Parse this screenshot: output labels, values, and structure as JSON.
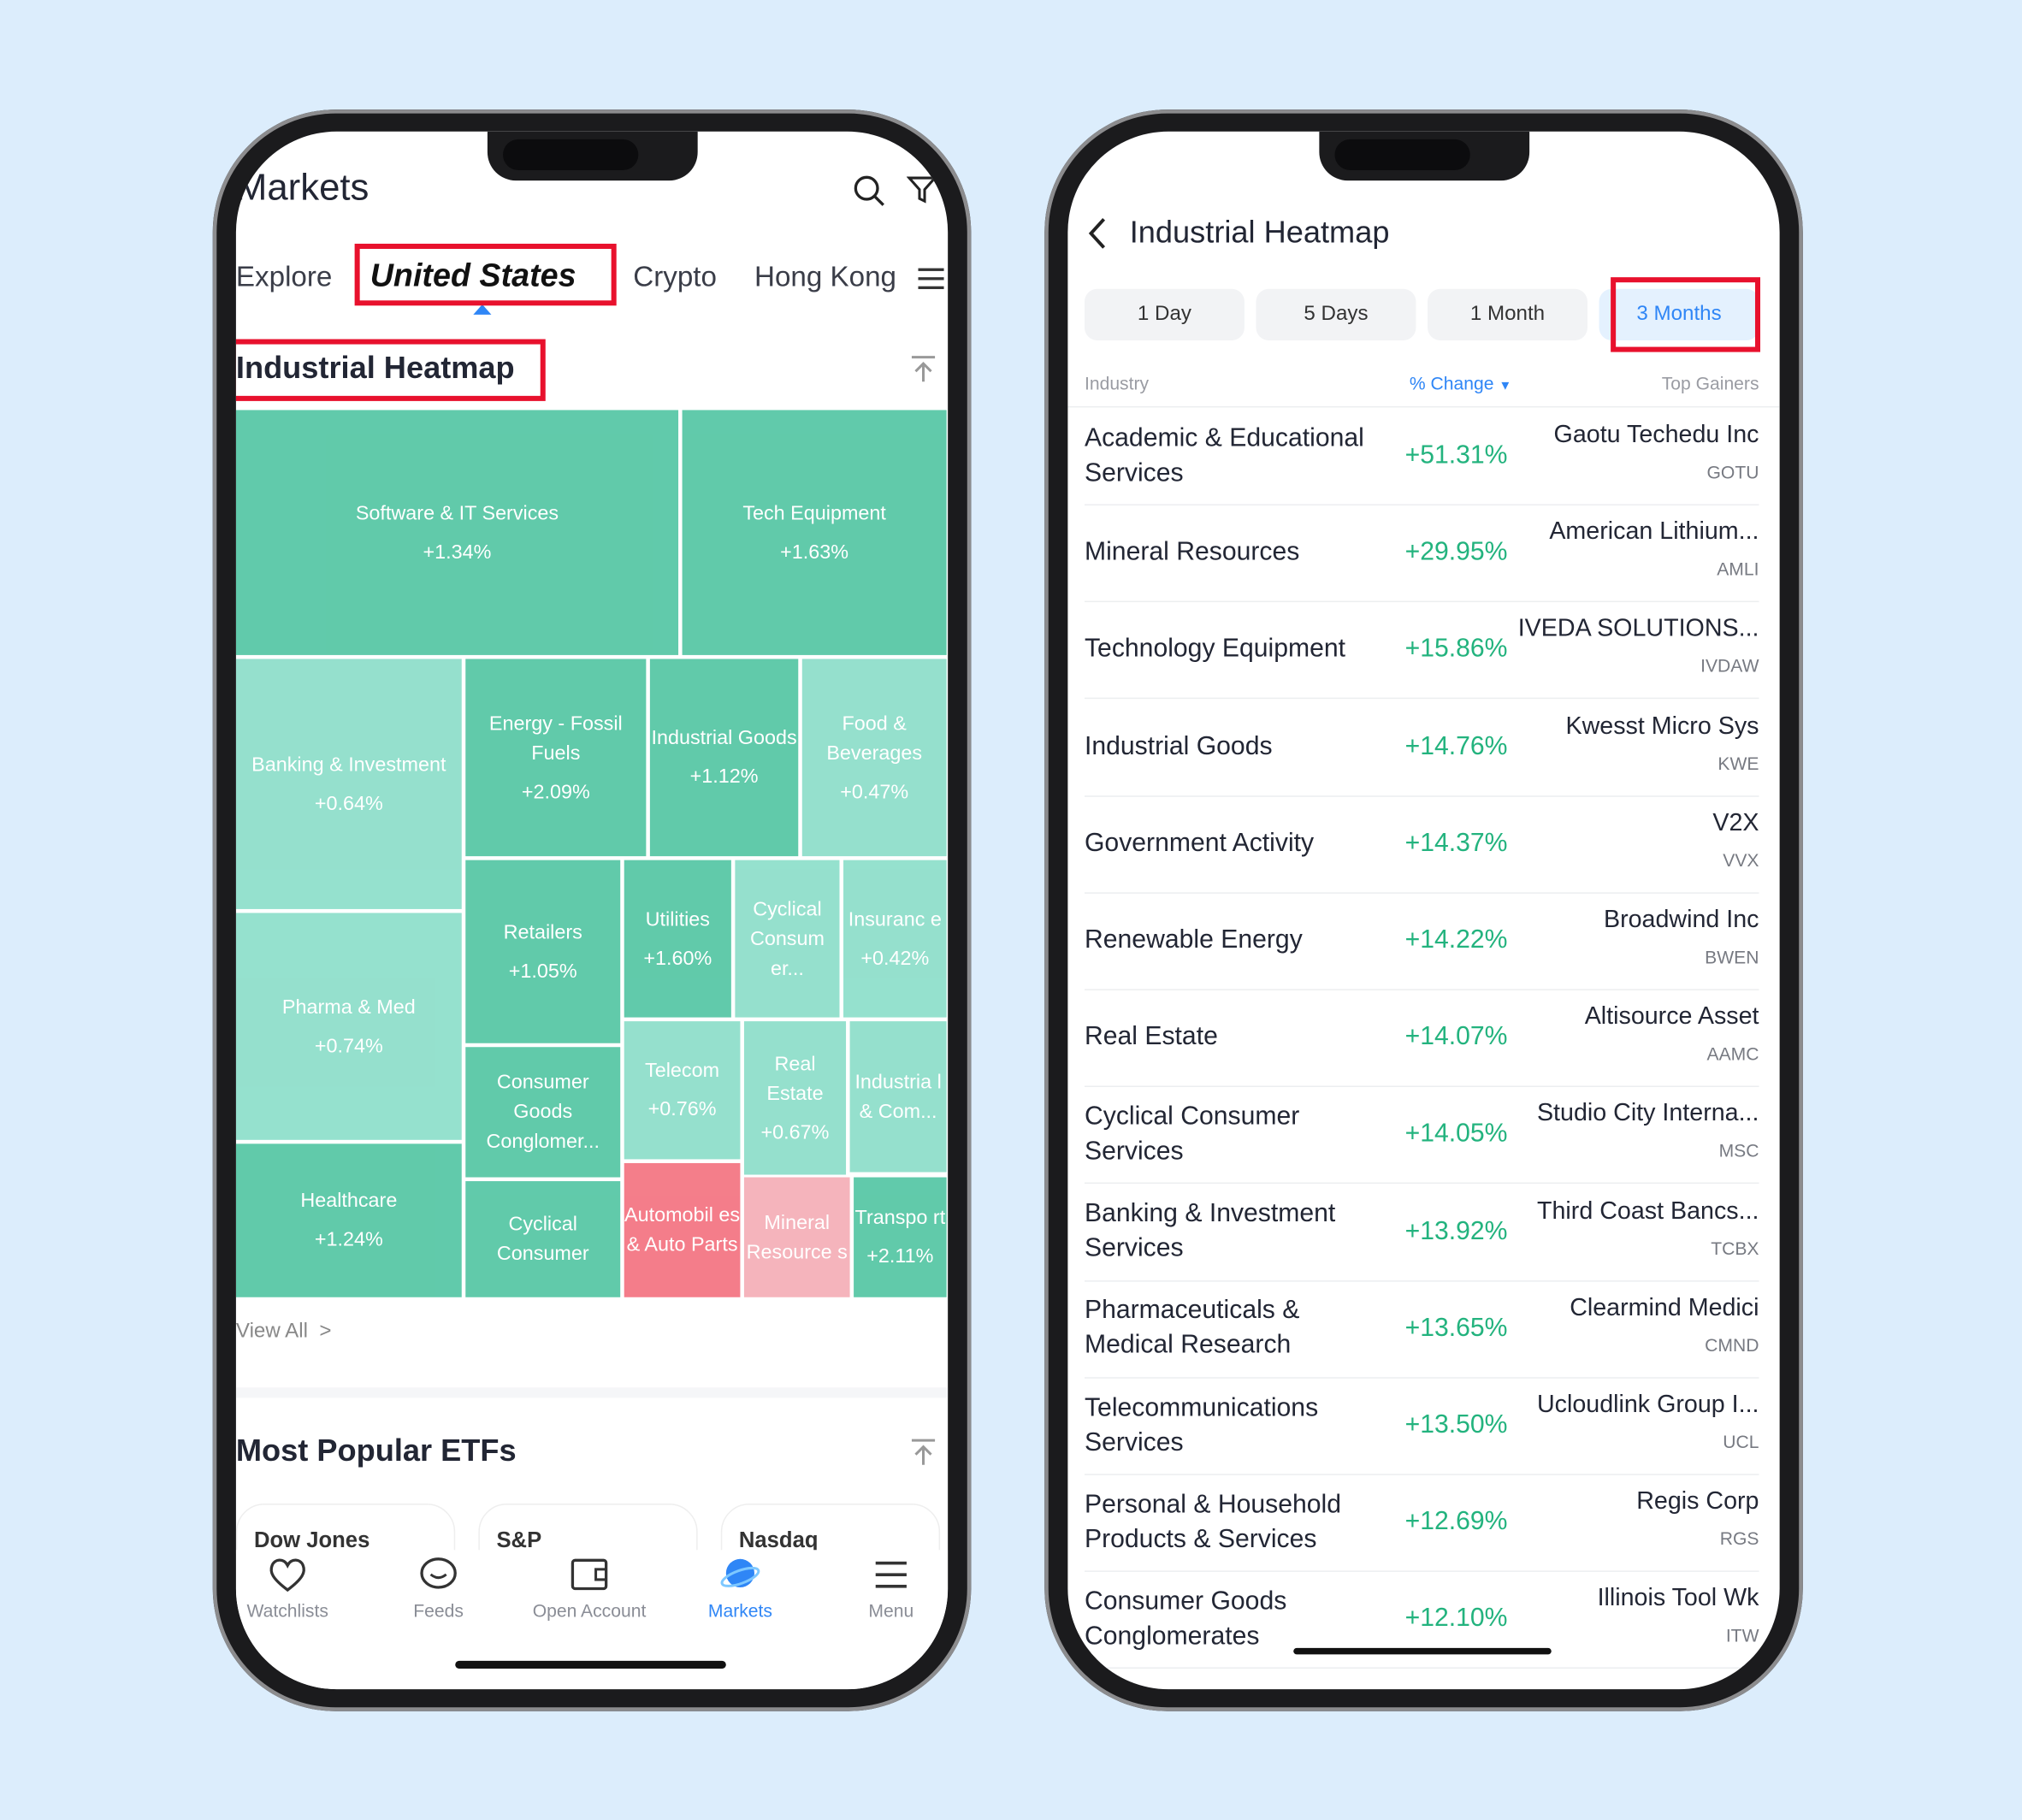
{
  "left": {
    "title": "Markets",
    "tabs": [
      "Explore",
      "United States",
      "Crypto",
      "Hong Kong"
    ],
    "active_tab": "United States",
    "heatmap_title": "Industrial Heatmap",
    "view_all": "View All",
    "etf_title": "Most Popular ETFs",
    "etfs": [
      "Dow Jones",
      "S&P",
      "Nasdaq"
    ],
    "tiles": [
      {
        "label": "Software & IT Services",
        "value": "+1.34%",
        "tone": "dark"
      },
      {
        "label": "Tech Equipment",
        "value": "+1.63%",
        "tone": "dark"
      },
      {
        "label": "Banking & Investment",
        "value": "+0.64%",
        "tone": "light"
      },
      {
        "label": "Energy - Fossil Fuels",
        "value": "+2.09%",
        "tone": "dark"
      },
      {
        "label": "Industrial Goods",
        "value": "+1.12%",
        "tone": "dark"
      },
      {
        "label": "Food & Beverages",
        "value": "+0.47%",
        "tone": "light"
      },
      {
        "label": "Pharma & Med",
        "value": "+0.74%",
        "tone": "light"
      },
      {
        "label": "Retailers",
        "value": "+1.05%",
        "tone": "dark"
      },
      {
        "label": "Utilities",
        "value": "+1.60%",
        "tone": "dark"
      },
      {
        "label": "Cyclical Consum er...",
        "value": "",
        "tone": "light"
      },
      {
        "label": "Insuranc e",
        "value": "+0.42%",
        "tone": "light"
      },
      {
        "label": "Consumer Goods Conglomer...",
        "value": "",
        "tone": "dark"
      },
      {
        "label": "Telecom",
        "value": "+0.76%",
        "tone": "light"
      },
      {
        "label": "Real Estate",
        "value": "+0.67%",
        "tone": "light"
      },
      {
        "label": "Industria l & Com...",
        "value": "",
        "tone": "light"
      },
      {
        "label": "Healthcare",
        "value": "+1.24%",
        "tone": "dark"
      },
      {
        "label": "Cyclical Consumer",
        "value": "",
        "tone": "dark"
      },
      {
        "label": "Automobil es & Auto Parts",
        "value": "",
        "tone": "red"
      },
      {
        "label": "Mineral Resource s",
        "value": "",
        "tone": "pink"
      },
      {
        "label": "Transpo rt",
        "value": "+2.11%",
        "tone": "dark"
      }
    ],
    "bottom_nav": [
      {
        "label": "Watchlists",
        "icon": "heart-icon"
      },
      {
        "label": "Feeds",
        "icon": "chat-icon"
      },
      {
        "label": "Open Account",
        "icon": "wallet-icon"
      },
      {
        "label": "Markets",
        "icon": "planet-icon",
        "active": true
      },
      {
        "label": "Menu",
        "icon": "menu-icon"
      }
    ]
  },
  "right": {
    "title": "Industrial Heatmap",
    "periods": [
      "1 Day",
      "5 Days",
      "1 Month",
      "3 Months"
    ],
    "active_period": "3 Months",
    "columns": {
      "industry": "Industry",
      "change": "% Change",
      "gainers": "Top Gainers"
    },
    "rows": [
      {
        "industry": "Academic & Educational Services",
        "change": "+51.31%",
        "gainer": "Gaotu Techedu Inc",
        "ticker": "GOTU"
      },
      {
        "industry": "Mineral Resources",
        "change": "+29.95%",
        "gainer": "American Lithium...",
        "ticker": "AMLI"
      },
      {
        "industry": "Technology Equipment",
        "change": "+15.86%",
        "gainer": "IVEDA SOLUTIONS...",
        "ticker": "IVDAW"
      },
      {
        "industry": "Industrial Goods",
        "change": "+14.76%",
        "gainer": "Kwesst Micro Sys",
        "ticker": "KWE"
      },
      {
        "industry": "Government Activity",
        "change": "+14.37%",
        "gainer": "V2X",
        "ticker": "VVX"
      },
      {
        "industry": "Renewable Energy",
        "change": "+14.22%",
        "gainer": "Broadwind Inc",
        "ticker": "BWEN"
      },
      {
        "industry": "Real Estate",
        "change": "+14.07%",
        "gainer": "Altisource Asset",
        "ticker": "AAMC"
      },
      {
        "industry": "Cyclical Consumer Services",
        "change": "+14.05%",
        "gainer": "Studio City Interna...",
        "ticker": "MSC"
      },
      {
        "industry": "Banking & Investment Services",
        "change": "+13.92%",
        "gainer": "Third Coast Bancs...",
        "ticker": "TCBX"
      },
      {
        "industry": "Pharmaceuticals & Medical Research",
        "change": "+13.65%",
        "gainer": "Clearmind Medici",
        "ticker": "CMND"
      },
      {
        "industry": "Telecommunications Services",
        "change": "+13.50%",
        "gainer": "Ucloudlink Group I...",
        "ticker": "UCL"
      },
      {
        "industry": "Personal & Household Products & Services",
        "change": "+12.69%",
        "gainer": "Regis Corp",
        "ticker": "RGS"
      },
      {
        "industry": "Consumer Goods Conglomerates",
        "change": "+12.10%",
        "gainer": "Illinois Tool Wk",
        "ticker": "ITW"
      }
    ]
  },
  "colors": {
    "dark": "#5ec9a9",
    "light": "#93e0cd",
    "red": "#f47b88",
    "pink": "#f5b3bb",
    "accent": "#2f86f6",
    "gain": "#23b37e",
    "highlight": "#e8112d",
    "background": "#dcedfc"
  }
}
